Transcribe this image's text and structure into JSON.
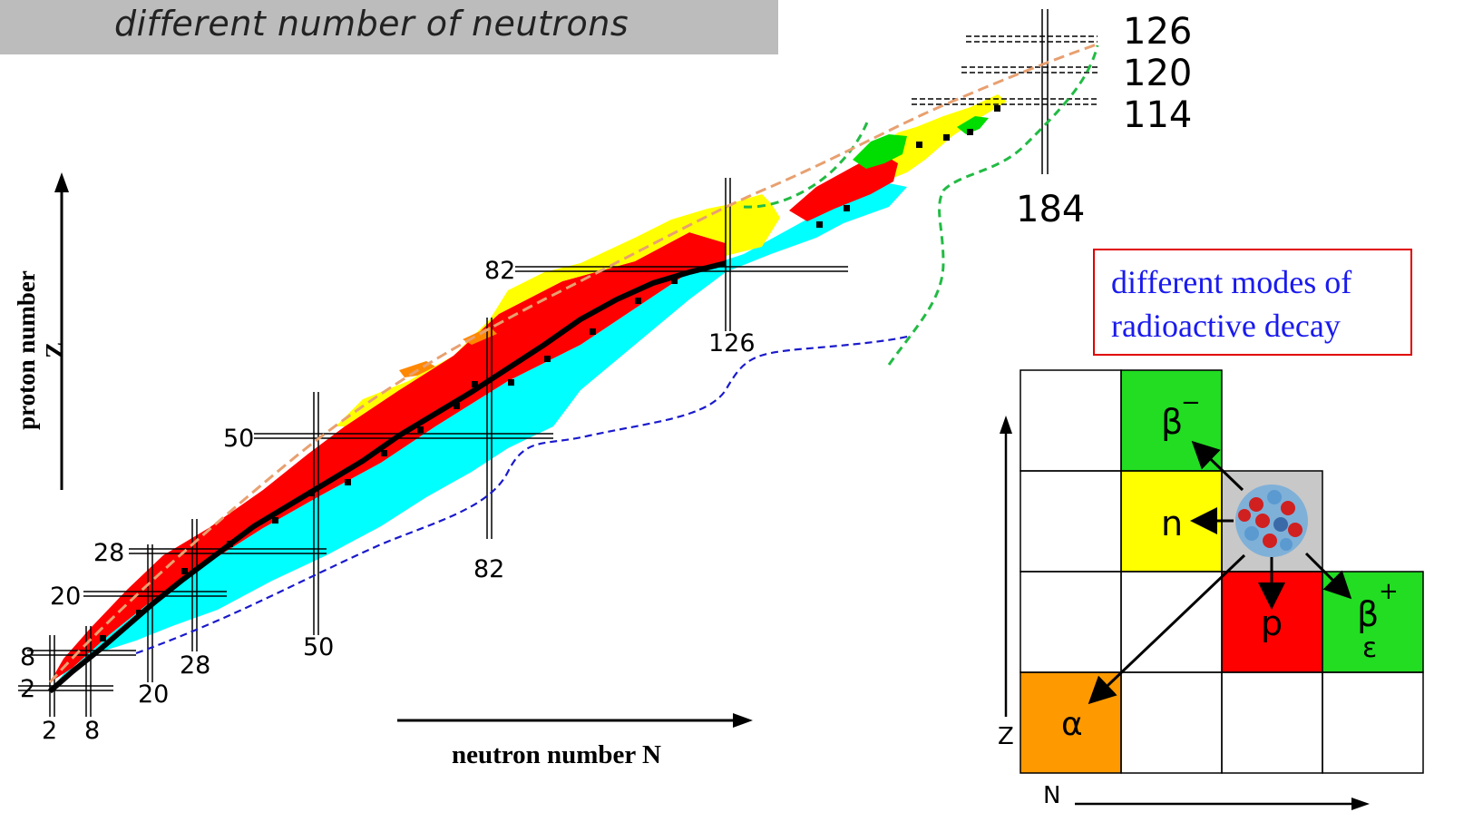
{
  "header": {
    "title": "different number of neutrons"
  },
  "axes": {
    "y_label": "proton number Z",
    "x_label": "neutron number N"
  },
  "magic_numbers": {
    "z_labels": [
      "2",
      "8",
      "20",
      "28",
      "50",
      "82"
    ],
    "n_labels": [
      "2",
      "8",
      "20",
      "28",
      "50",
      "82",
      "126"
    ],
    "superheavy_z": [
      "126",
      "120",
      "114"
    ],
    "superheavy_n": "184"
  },
  "decay_note": {
    "line1": "different modes of",
    "line2": "radioactive decay"
  },
  "decay_modes": {
    "beta_minus": "β",
    "beta_minus_sup": "−",
    "neutron": "n",
    "proton": "p",
    "beta_plus": "β",
    "beta_plus_sup": "+",
    "electron_capture": "ε",
    "alpha": "α",
    "axis_z": "Z",
    "axis_n": "N"
  },
  "colors": {
    "stable": "#000000",
    "beta_minus": "#00ffff",
    "beta_plus": "#ff0000",
    "alpha": "#ffff00",
    "fission": "#00dd00",
    "proton": "#ff8800",
    "neutron_dripline": "#1a1acc",
    "fission_line": "#22bb44",
    "proton_dripline": "#e8a070"
  }
}
